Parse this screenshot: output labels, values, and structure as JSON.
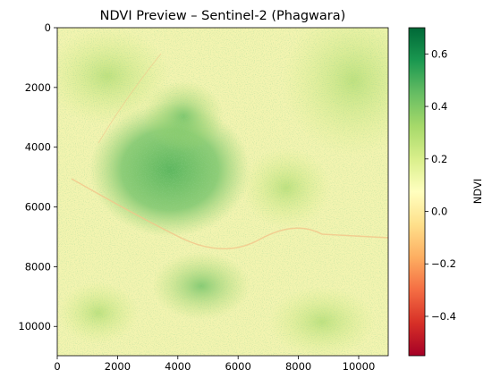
{
  "chart_data": {
    "type": "heatmap",
    "title": "NDVI Preview – Sentinel-2 (Phagwara)",
    "x_ticks": [
      "0",
      "2000",
      "4000",
      "6000",
      "8000",
      "10000"
    ],
    "x_tick_values": [
      0,
      2000,
      4000,
      6000,
      8000,
      10000
    ],
    "y_ticks": [
      "0",
      "2000",
      "4000",
      "6000",
      "8000",
      "10000"
    ],
    "y_tick_values": [
      0,
      2000,
      4000,
      6000,
      8000,
      10000
    ],
    "xlim": [
      0,
      10980
    ],
    "ylim": [
      10980,
      0
    ],
    "colorbar": {
      "label": "NDVI",
      "colormap": "RdYlGn",
      "range": [
        -0.55,
        0.7
      ],
      "ticks": [
        "0.6",
        "0.4",
        "0.2",
        "0.0",
        "−0.2",
        "−0.4"
      ],
      "tick_values": [
        0.6,
        0.4,
        0.2,
        0.0,
        -0.2,
        -0.4
      ]
    },
    "image_description_regions": [
      {
        "area": "central-left",
        "ndvi": 0.4
      },
      {
        "area": "upper-right",
        "ndvi": 0.2
      },
      {
        "area": "background",
        "ndvi": 0.05
      }
    ]
  }
}
